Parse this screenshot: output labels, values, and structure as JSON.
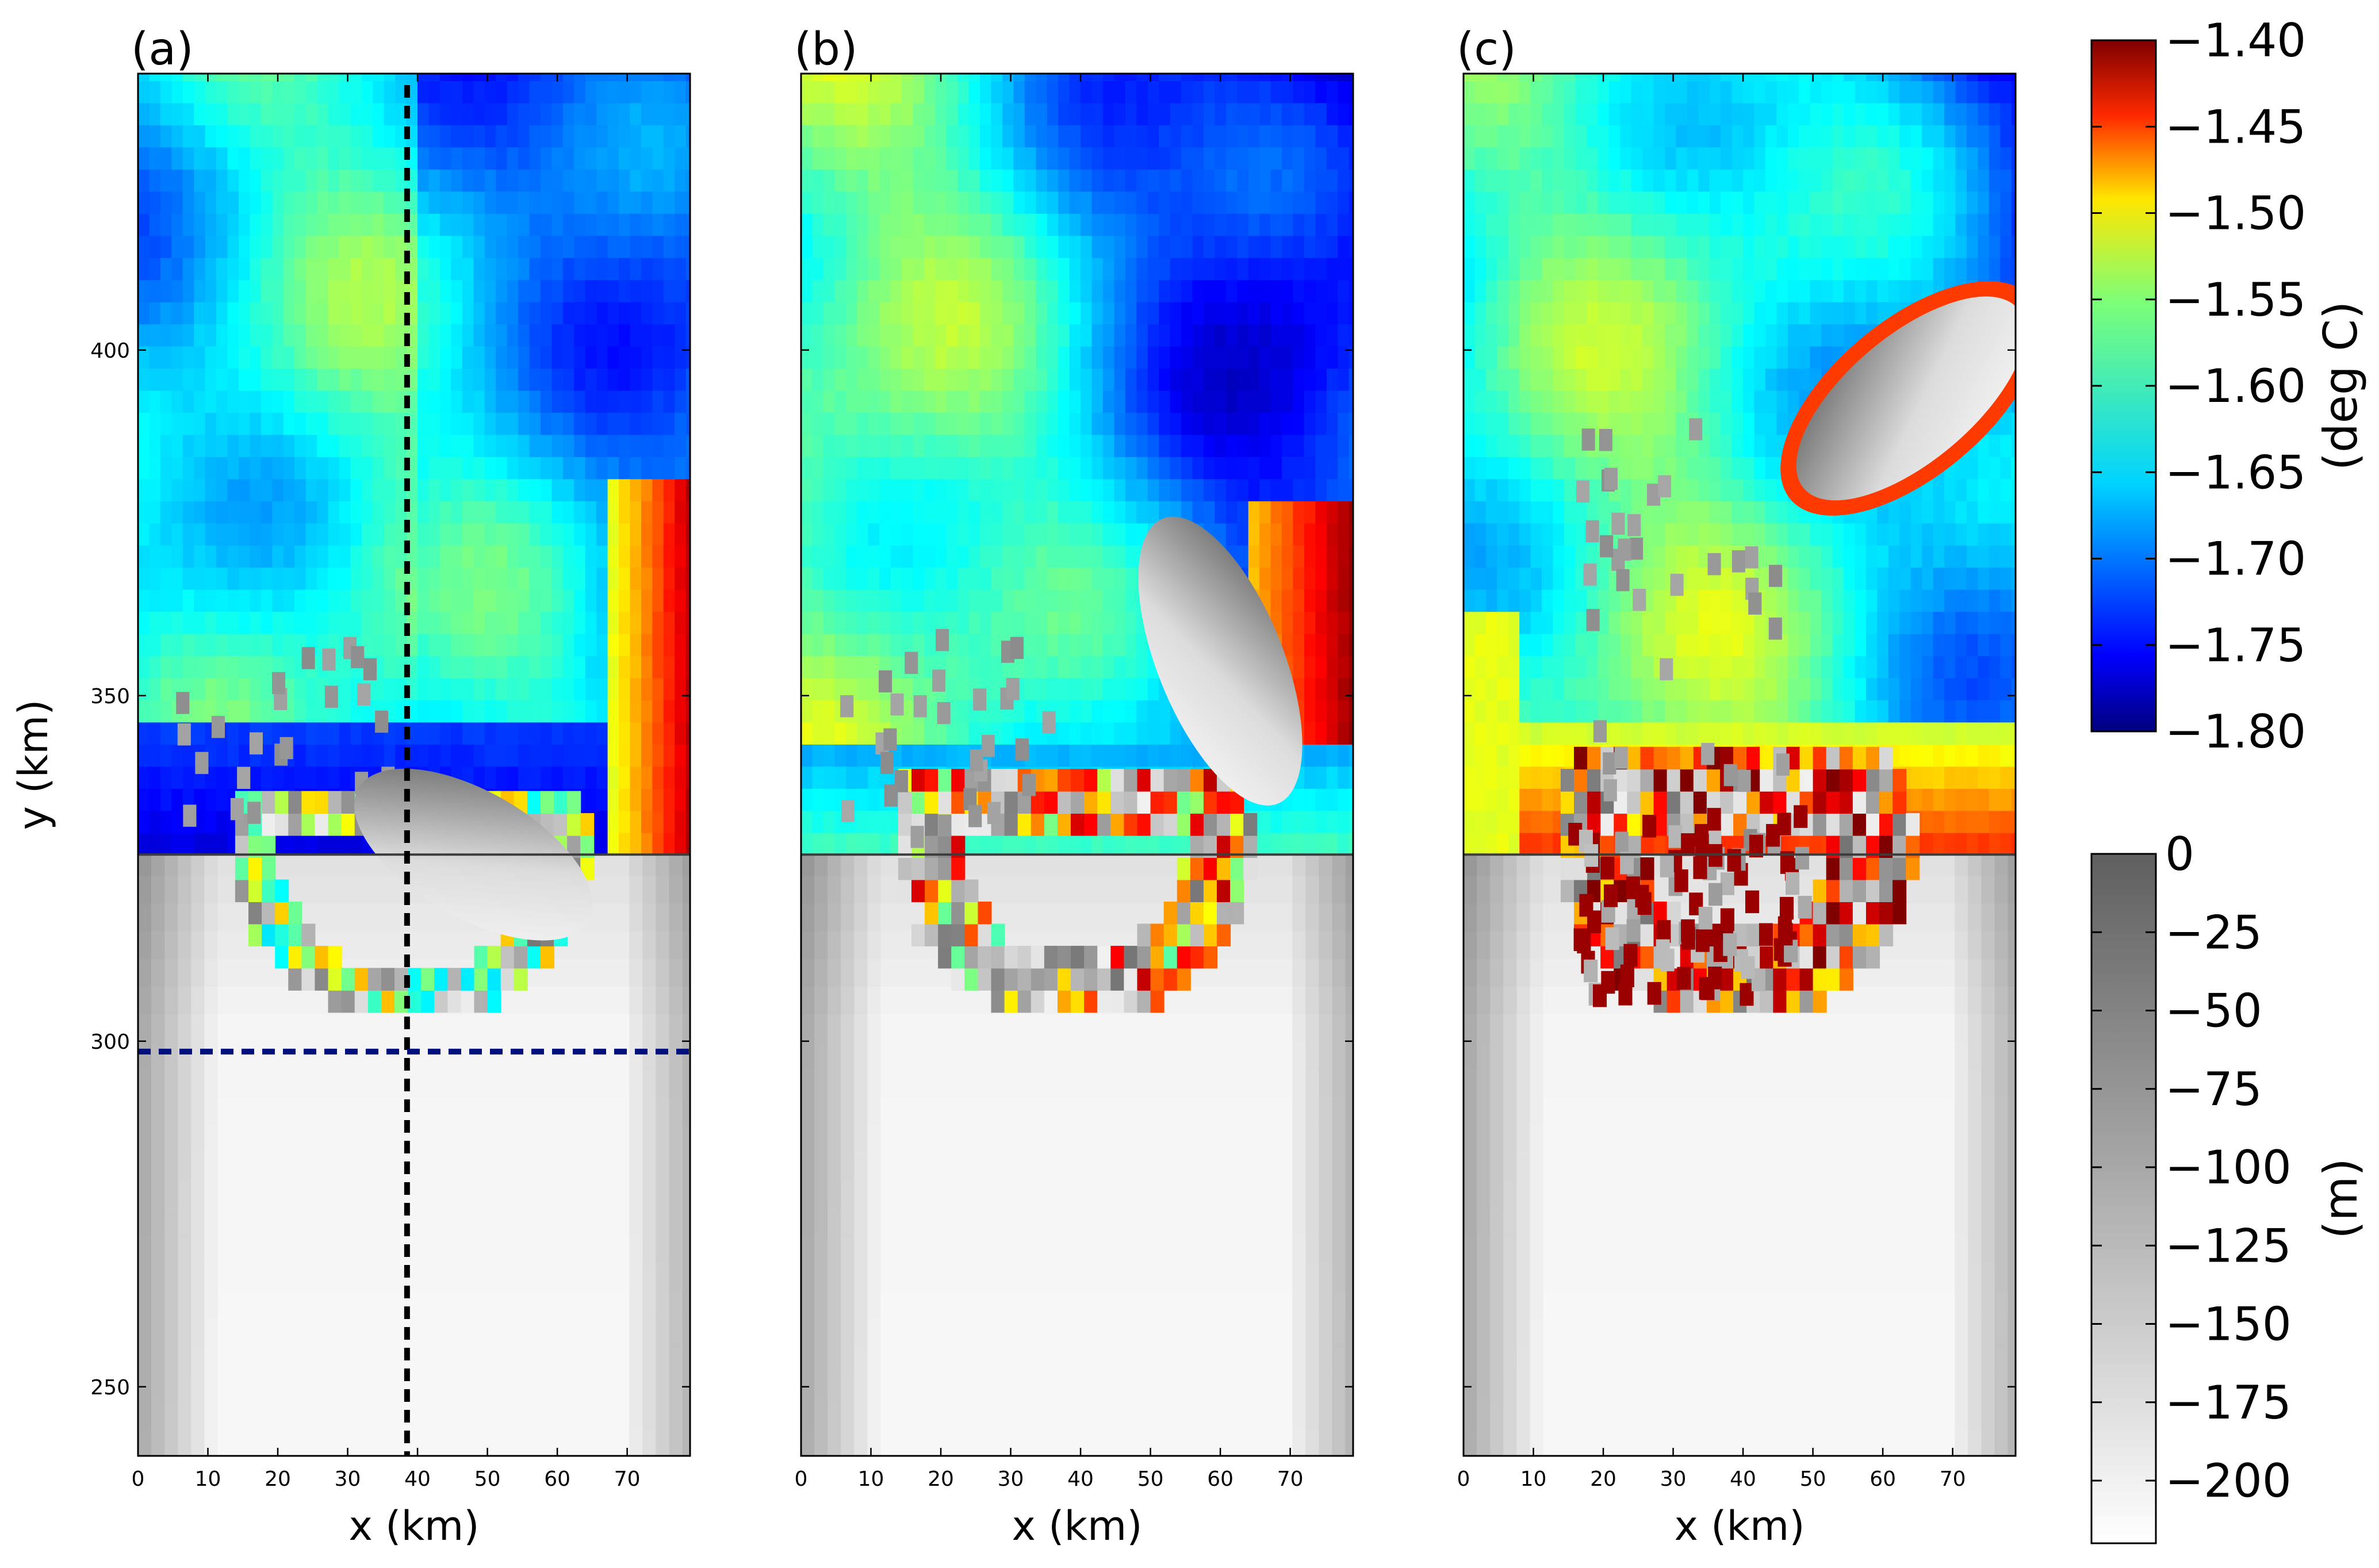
{
  "chart_data": {
    "type": "heatmap",
    "panels": [
      {
        "label": "(a)",
        "xlabel": "x (km)",
        "ylabel": "y (km)",
        "stage": 0
      },
      {
        "label": "(b)",
        "xlabel": "x (km)",
        "ylabel": "",
        "stage": 1
      },
      {
        "label": "(c)",
        "xlabel": "x (km)",
        "ylabel": "",
        "stage": 2
      }
    ],
    "xlim": [
      0,
      79
    ],
    "ylim": [
      240,
      440
    ],
    "x_ticks": [
      "0",
      "10",
      "20",
      "30",
      "40",
      "50",
      "60",
      "70"
    ],
    "x_tick_values": [
      0,
      10,
      20,
      30,
      40,
      50,
      60,
      70
    ],
    "y_ticks": [
      "250",
      "300",
      "350",
      "400"
    ],
    "y_tick_values": [
      250,
      300,
      350,
      400
    ],
    "ice_front_y_km": 327,
    "grounding_line_radius_km": 26,
    "grounding_line_center": [
      38,
      327
    ],
    "temperature_colorbar": {
      "label": "(deg C)",
      "colormap": "jet",
      "range": [
        -1.8,
        -1.4
      ],
      "ticks": [
        "−1.40",
        "−1.45",
        "−1.50",
        "−1.55",
        "−1.60",
        "−1.65",
        "−1.70",
        "−1.75",
        "−1.80"
      ],
      "tick_values": [
        -1.4,
        -1.45,
        -1.5,
        -1.55,
        -1.6,
        -1.65,
        -1.7,
        -1.75,
        -1.8
      ]
    },
    "depth_colorbar": {
      "label": "(m)",
      "colormap": "gray",
      "range": [
        -220,
        0
      ],
      "ticks": [
        "0",
        "−25",
        "−50",
        "−75",
        "−100",
        "−125",
        "−150",
        "−175",
        "−200"
      ],
      "tick_values": [
        0,
        -25,
        -50,
        -75,
        -100,
        -125,
        -150,
        -175,
        -200
      ]
    },
    "section_lines": [
      {
        "orientation": "vertical",
        "x_km": 38.5,
        "color": "#000000",
        "panel": "(a)"
      },
      {
        "orientation": "horizontal",
        "y_km": 298.5,
        "color": "#00107a",
        "panel": "(a)"
      }
    ],
    "iceberg_ellipses": [
      {
        "panel": "(a)",
        "center": [
          48,
          327
        ],
        "half_axes_km": [
          19,
          9
        ],
        "angle_deg": 30
      },
      {
        "panel": "(b)",
        "center": [
          60,
          355
        ],
        "half_axes_km": [
          22,
          9
        ],
        "angle_deg": 68
      },
      {
        "panel": "(c)",
        "center": [
          64,
          393
        ],
        "half_axes_km": [
          20,
          9
        ],
        "angle_deg": -40
      }
    ]
  }
}
